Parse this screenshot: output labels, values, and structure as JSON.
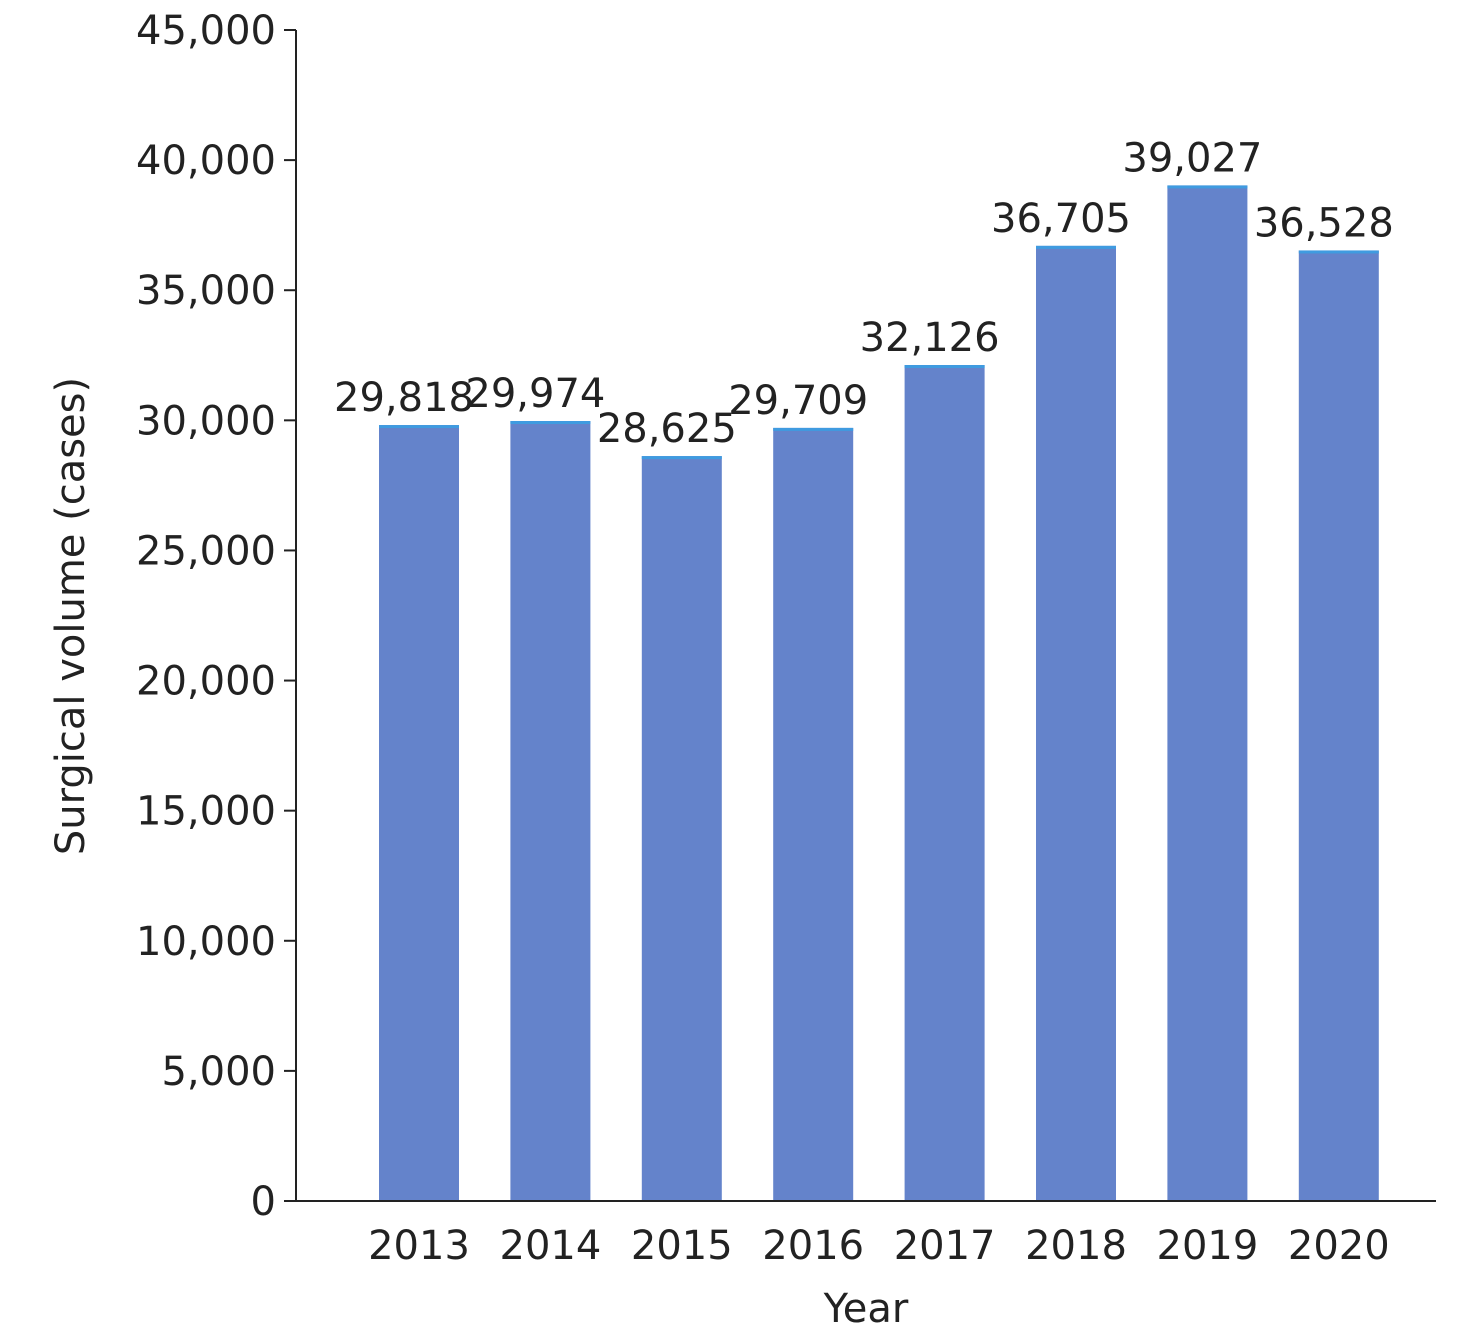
{
  "chart_data": {
    "type": "bar",
    "categories": [
      "2013",
      "2014",
      "2015",
      "2016",
      "2017",
      "2018",
      "2019",
      "2020"
    ],
    "values": [
      29818,
      29974,
      28625,
      29709,
      32126,
      36705,
      39027,
      36528
    ],
    "value_labels": [
      "29,818",
      "29,974",
      "28,625",
      "29,709",
      "32,126",
      "36,705",
      "39,027",
      "36,528"
    ],
    "xlabel": "Year",
    "ylabel": "Surgical volume (cases)",
    "ylim": [
      0,
      45000
    ],
    "yticks": [
      0,
      5000,
      10000,
      15000,
      20000,
      25000,
      30000,
      35000,
      40000,
      45000
    ],
    "ytick_labels": [
      "0",
      "5,000",
      "10,000",
      "15,000",
      "20,000",
      "25,000",
      "30,000",
      "35,000",
      "40,000",
      "45,000"
    ],
    "grid": false,
    "legend": "none",
    "colors": {
      "bar": "#6483cb",
      "bar_top": "#3f9be0",
      "axis": "#222222",
      "text": "#222222"
    }
  }
}
